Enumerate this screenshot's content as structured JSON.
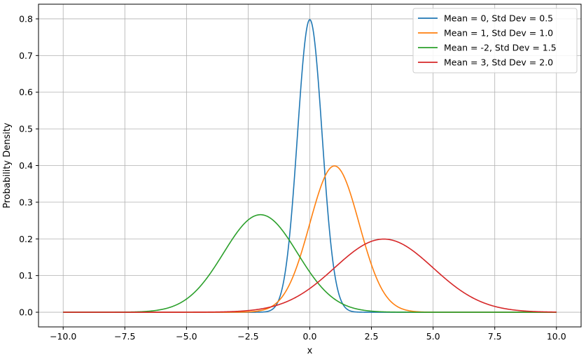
{
  "chart_data": {
    "type": "line",
    "title": "",
    "xlabel": "x",
    "ylabel": "Probability Density",
    "xlim": [
      -11.0,
      11.0
    ],
    "ylim": [
      -0.04,
      0.84
    ],
    "xticks": [
      -10.0,
      -7.5,
      -5.0,
      -2.5,
      0.0,
      2.5,
      5.0,
      7.5,
      10.0
    ],
    "xtick_labels": [
      "−10.0",
      "−7.5",
      "−5.0",
      "−2.5",
      "0.0",
      "2.5",
      "5.0",
      "7.5",
      "10.0"
    ],
    "yticks": [
      0.0,
      0.1,
      0.2,
      0.3,
      0.4,
      0.5,
      0.6,
      0.7,
      0.8
    ],
    "ytick_labels": [
      "0.0",
      "0.1",
      "0.2",
      "0.3",
      "0.4",
      "0.5",
      "0.6",
      "0.7",
      "0.8"
    ],
    "x_range": [
      -10,
      10
    ],
    "grid": true,
    "legend": "top-right",
    "series": [
      {
        "name": "Mean = 0, Std Dev = 0.5",
        "mean": 0,
        "std": 0.5,
        "color": "#1f77b4"
      },
      {
        "name": "Mean = 1, Std Dev = 1.0",
        "mean": 1,
        "std": 1.0,
        "color": "#ff7f0e"
      },
      {
        "name": "Mean = -2, Std Dev = 1.5",
        "mean": -2,
        "std": 1.5,
        "color": "#2ca02c"
      },
      {
        "name": "Mean = 3, Std Dev = 2.0",
        "mean": 3,
        "std": 2.0,
        "color": "#d62728"
      }
    ]
  }
}
